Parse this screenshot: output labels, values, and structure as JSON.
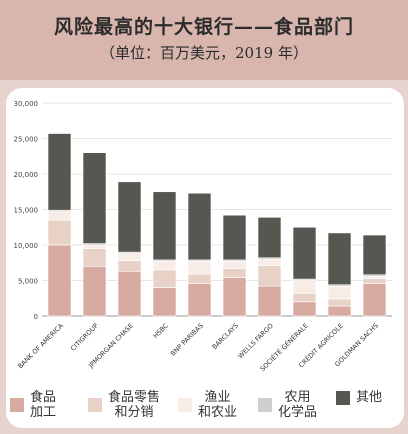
{
  "header": {
    "title": "风险最高的十大银行——食品部门",
    "subtitle": "（单位：百万美元，2019 年）"
  },
  "chart_data": {
    "type": "bar",
    "stacked": true,
    "title": "风险最高的十大银行——食品部门",
    "subtitle": "（单位：百万美元，2019 年）",
    "categories": [
      "BANK OF AMERICA",
      "CITIGROUP",
      "JPMORGAN CHASE",
      "HSBC",
      "BNP PARIBAS",
      "BARCLAYS",
      "WELLS FARGO",
      "SOCIÉTÉ GÉNÉRALE",
      "CRÉDIT AGRICOLE",
      "GOLDMAN SACHS"
    ],
    "series": [
      {
        "name": "食品加工",
        "color": "#d7aba2",
        "values": [
          10000,
          7000,
          6300,
          4000,
          4600,
          5400,
          4200,
          2000,
          1400,
          4600
        ]
      },
      {
        "name": "食品零售和分销",
        "color": "#e8d2c8",
        "values": [
          3500,
          2500,
          1500,
          2500,
          1300,
          1300,
          2900,
          1200,
          1000,
          700
        ]
      },
      {
        "name": "渔业和农业",
        "color": "#f8ede6",
        "values": [
          1200,
          500,
          1000,
          1200,
          1800,
          1000,
          900,
          1800,
          1800,
          300
        ]
      },
      {
        "name": "农用化学品",
        "color": "#d0cfcd",
        "values": [
          200,
          200,
          200,
          200,
          200,
          200,
          200,
          200,
          200,
          200
        ]
      },
      {
        "name": "其他",
        "color": "#575752",
        "values": [
          10800,
          12800,
          9900,
          9600,
          9400,
          6300,
          5700,
          7300,
          7300,
          5600
        ]
      }
    ],
    "yticks": [
      "0",
      "5,000",
      "10,000",
      "15,000",
      "20,000",
      "25,000",
      "30,000"
    ],
    "ylim": [
      0,
      30000
    ],
    "legend_position": "bottom",
    "grid": true
  },
  "legend": {
    "items": [
      {
        "line1": "食品",
        "line2": "加工",
        "color": "#d7aba2"
      },
      {
        "line1": "食品零售",
        "line2": "和分销",
        "color": "#e8d2c8"
      },
      {
        "line1": "渔业",
        "line2": "和农业",
        "color": "#f8ede6"
      },
      {
        "line1": "农用",
        "line2": "化学品",
        "color": "#d0cfcd"
      },
      {
        "line1": "其他",
        "line2": "",
        "color": "#575752"
      }
    ]
  }
}
